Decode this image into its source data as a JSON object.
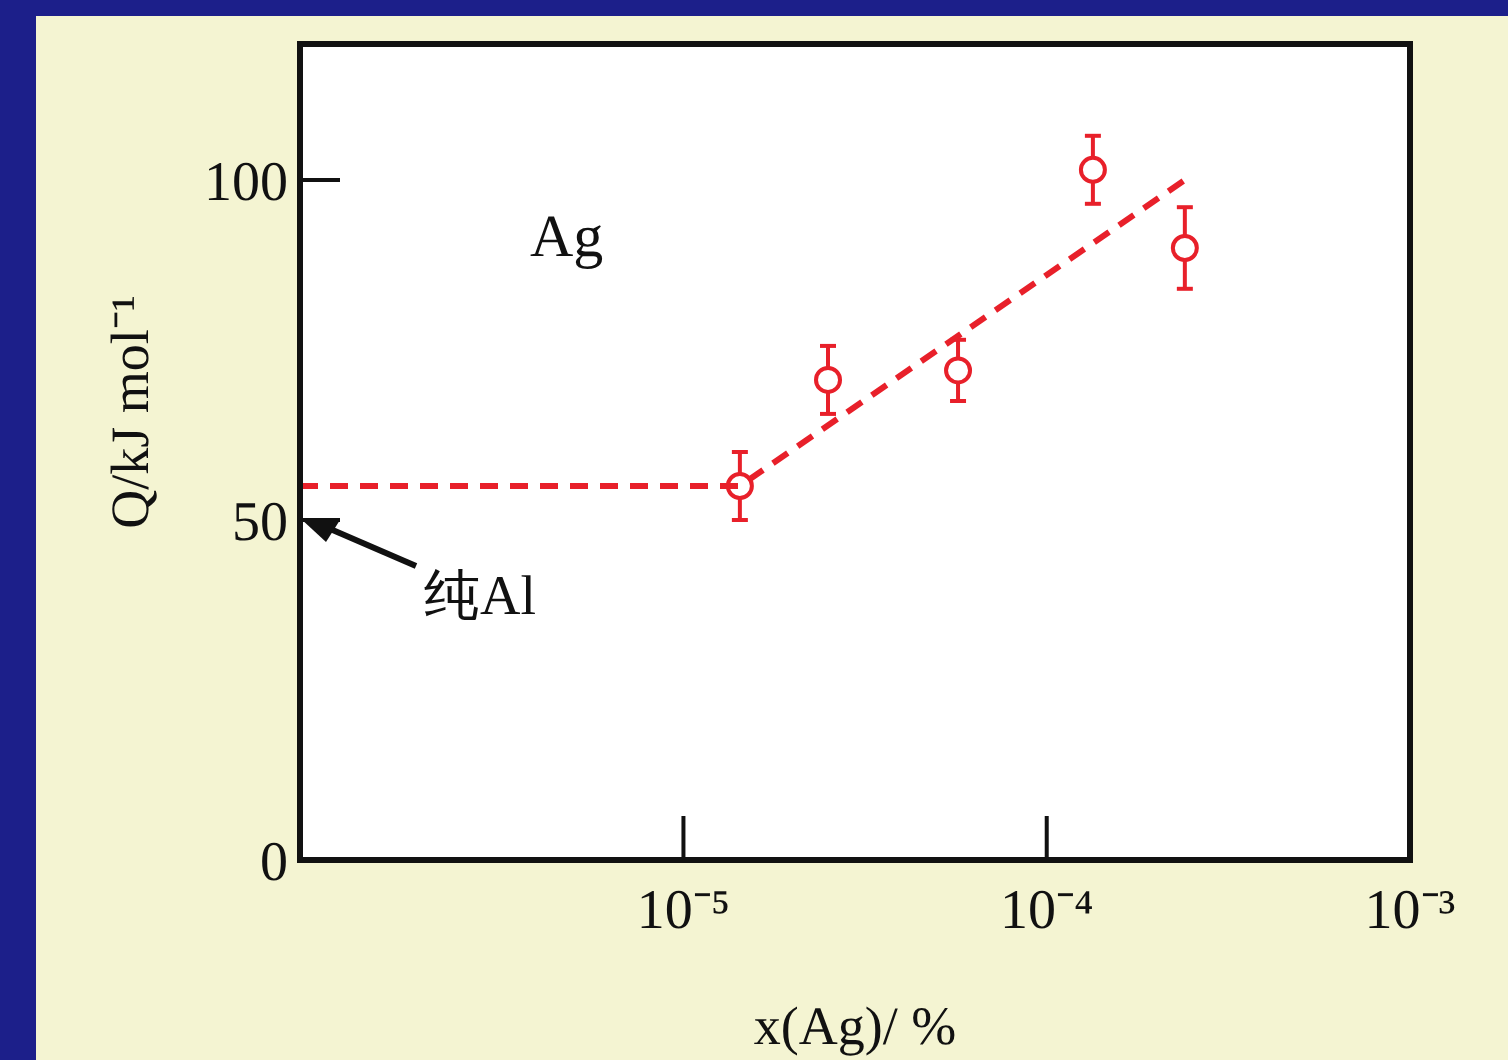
{
  "chart_data": {
    "type": "scatter",
    "xlabel": "x(Ag)/ %",
    "ylabel": "Q/kJ mol⁻¹",
    "log": "x",
    "xlim": [
      8.8e-07,
      0.001
    ],
    "ylim": [
      0,
      120
    ],
    "xticks": [
      {
        "value": 1e-05,
        "label": "10⁻⁵"
      },
      {
        "value": 0.0001,
        "label": "10⁻⁴"
      },
      {
        "value": 0.001,
        "label": "10⁻³"
      }
    ],
    "yticks": [
      0,
      50,
      100
    ],
    "series": [
      {
        "color": "#e8202a",
        "marker": "circle",
        "x": [
          1.43e-05,
          2.5e-05,
          5.7e-05,
          0.000134,
          0.00024
        ],
        "values": [
          55,
          70.6,
          72,
          101.5,
          90
        ],
        "errors": [
          5,
          5,
          4.5,
          5,
          6
        ]
      },
      {
        "type": "line",
        "color": "#e8202a",
        "line_style": "dashed",
        "marker": "none",
        "x": [
          8.8e-07,
          1.43e-05,
          0.00024
        ],
        "values": [
          55,
          55,
          100
        ]
      }
    ],
    "annotations": [
      "Ag",
      "纯Al"
    ]
  }
}
